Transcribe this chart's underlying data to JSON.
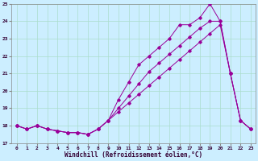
{
  "xlabel": "Windchill (Refroidissement éolien,°C)",
  "bg_color": "#cceeff",
  "grid_color": "#aaddcc",
  "line_color": "#990099",
  "xlim": [
    -0.5,
    23.5
  ],
  "ylim": [
    17,
    25
  ],
  "yticks": [
    17,
    18,
    19,
    20,
    21,
    22,
    23,
    24,
    25
  ],
  "xticks": [
    0,
    1,
    2,
    3,
    4,
    5,
    6,
    7,
    8,
    9,
    10,
    11,
    12,
    13,
    14,
    15,
    16,
    17,
    18,
    19,
    20,
    21,
    22,
    23
  ],
  "line1_x": [
    0,
    1,
    2,
    3,
    4,
    5,
    6,
    7,
    8,
    9,
    10,
    11,
    12,
    13,
    14,
    15,
    16,
    17,
    18,
    19,
    20,
    21,
    22,
    23
  ],
  "line1_y": [
    18.0,
    17.8,
    18.0,
    17.8,
    17.7,
    17.6,
    17.6,
    17.5,
    17.8,
    18.3,
    18.8,
    19.3,
    19.8,
    20.3,
    20.8,
    21.3,
    21.8,
    22.3,
    22.8,
    23.3,
    23.8,
    21.0,
    18.3,
    17.8
  ],
  "line2_x": [
    0,
    1,
    2,
    3,
    4,
    5,
    6,
    7,
    8,
    9,
    10,
    11,
    12,
    13,
    14,
    15,
    16,
    17,
    18,
    19,
    20,
    21,
    22,
    23
  ],
  "line2_y": [
    18.0,
    17.8,
    18.0,
    17.8,
    17.7,
    17.6,
    17.6,
    17.5,
    17.8,
    18.3,
    19.0,
    19.7,
    20.4,
    21.1,
    21.6,
    22.1,
    22.6,
    23.1,
    23.6,
    24.0,
    24.0,
    21.0,
    18.3,
    17.8
  ],
  "line3_x": [
    0,
    1,
    2,
    3,
    4,
    5,
    6,
    7,
    8,
    9,
    10,
    11,
    12,
    13,
    14,
    15,
    16,
    17,
    18,
    19,
    20,
    21,
    22,
    23
  ],
  "line3_y": [
    18.0,
    17.8,
    18.0,
    17.8,
    17.7,
    17.6,
    17.6,
    17.5,
    17.8,
    18.3,
    19.5,
    20.5,
    21.5,
    22.0,
    22.5,
    23.0,
    23.8,
    23.8,
    24.2,
    25.0,
    24.0,
    21.0,
    18.3,
    17.8
  ]
}
